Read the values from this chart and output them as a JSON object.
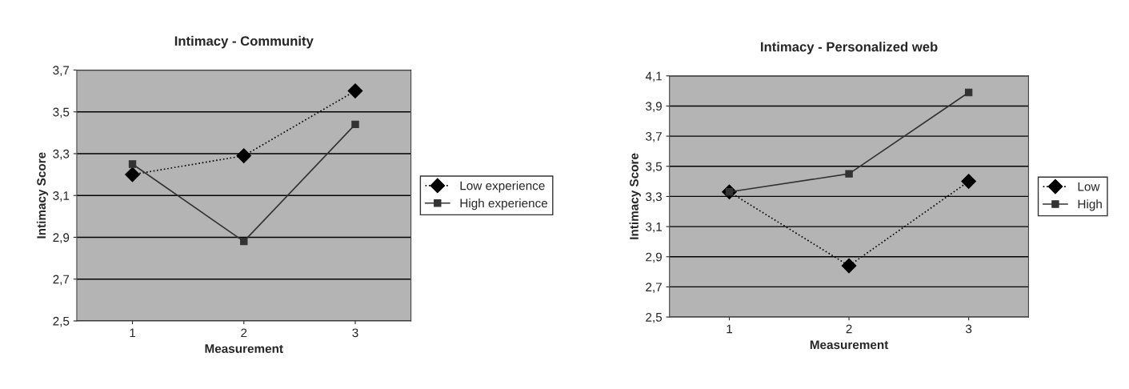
{
  "chart_data": [
    {
      "type": "line",
      "title": "Intimacy - Community",
      "xlabel": "Measurement",
      "ylabel": "Intimacy Score",
      "categories": [
        "1",
        "2",
        "3"
      ],
      "series": [
        {
          "name": "Low experience",
          "color": "#000000",
          "values": [
            3.2,
            3.29,
            3.6
          ],
          "marker": "diamond",
          "line_style": "dotted"
        },
        {
          "name": "High experience",
          "color": "#333333",
          "values": [
            3.25,
            2.88,
            3.44
          ],
          "marker": "square",
          "line_style": "solid"
        }
      ],
      "ylim": [
        2.5,
        3.7
      ],
      "yticks": [
        {
          "value": 2.5,
          "label": "2,5"
        },
        {
          "value": 2.7,
          "label": "2,7"
        },
        {
          "value": 2.9,
          "label": "2,9"
        },
        {
          "value": 3.1,
          "label": "3,1"
        },
        {
          "value": 3.3,
          "label": "3,3"
        },
        {
          "value": 3.5,
          "label": "3,5"
        },
        {
          "value": 3.7,
          "label": "3,7"
        }
      ],
      "grid": "y",
      "legend": "right"
    },
    {
      "type": "line",
      "title": "Intimacy - Personalized web",
      "xlabel": "Measurement",
      "ylabel": "Intimacy Score",
      "categories": [
        "1",
        "2",
        "3"
      ],
      "series": [
        {
          "name": "Low",
          "color": "#000000",
          "values": [
            3.33,
            2.84,
            3.4
          ],
          "marker": "diamond",
          "line_style": "dotted"
        },
        {
          "name": "High",
          "color": "#333333",
          "values": [
            3.33,
            3.45,
            3.99
          ],
          "marker": "square",
          "line_style": "solid"
        }
      ],
      "ylim": [
        2.5,
        4.1
      ],
      "yticks": [
        {
          "value": 2.5,
          "label": "2,5"
        },
        {
          "value": 2.7,
          "label": "2,7"
        },
        {
          "value": 2.9,
          "label": "2,9"
        },
        {
          "value": 3.1,
          "label": "3,1"
        },
        {
          "value": 3.3,
          "label": "3,3"
        },
        {
          "value": 3.5,
          "label": "3,5"
        },
        {
          "value": 3.7,
          "label": "3,7"
        },
        {
          "value": 3.9,
          "label": "3,9"
        },
        {
          "value": 4.1,
          "label": "4,1"
        }
      ],
      "grid": "y",
      "legend": "right"
    }
  ]
}
